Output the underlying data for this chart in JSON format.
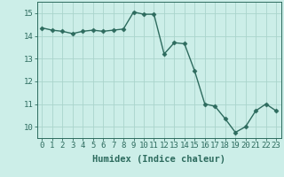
{
  "x": [
    0,
    1,
    2,
    3,
    4,
    5,
    6,
    7,
    8,
    9,
    10,
    11,
    12,
    13,
    14,
    15,
    16,
    17,
    18,
    19,
    20,
    21,
    22,
    23
  ],
  "y": [
    14.35,
    14.25,
    14.2,
    14.1,
    14.2,
    14.25,
    14.2,
    14.25,
    14.3,
    15.05,
    14.95,
    14.95,
    13.2,
    13.7,
    13.65,
    12.45,
    11.0,
    10.9,
    10.35,
    9.75,
    10.0,
    10.7,
    11.0,
    10.7
  ],
  "line_color": "#2d6b5e",
  "marker": "D",
  "markersize": 2.5,
  "linewidth": 1.0,
  "bg_color": "#cceee8",
  "grid_color": "#aad4cc",
  "axis_color": "#2d6b5e",
  "xlabel": "Humidex (Indice chaleur)",
  "xlim": [
    -0.5,
    23.5
  ],
  "ylim": [
    9.5,
    15.5
  ],
  "yticks": [
    10,
    11,
    12,
    13,
    14,
    15
  ],
  "xticks": [
    0,
    1,
    2,
    3,
    4,
    5,
    6,
    7,
    8,
    9,
    10,
    11,
    12,
    13,
    14,
    15,
    16,
    17,
    18,
    19,
    20,
    21,
    22,
    23
  ],
  "xlabel_fontsize": 7.5,
  "tick_fontsize": 6.5
}
